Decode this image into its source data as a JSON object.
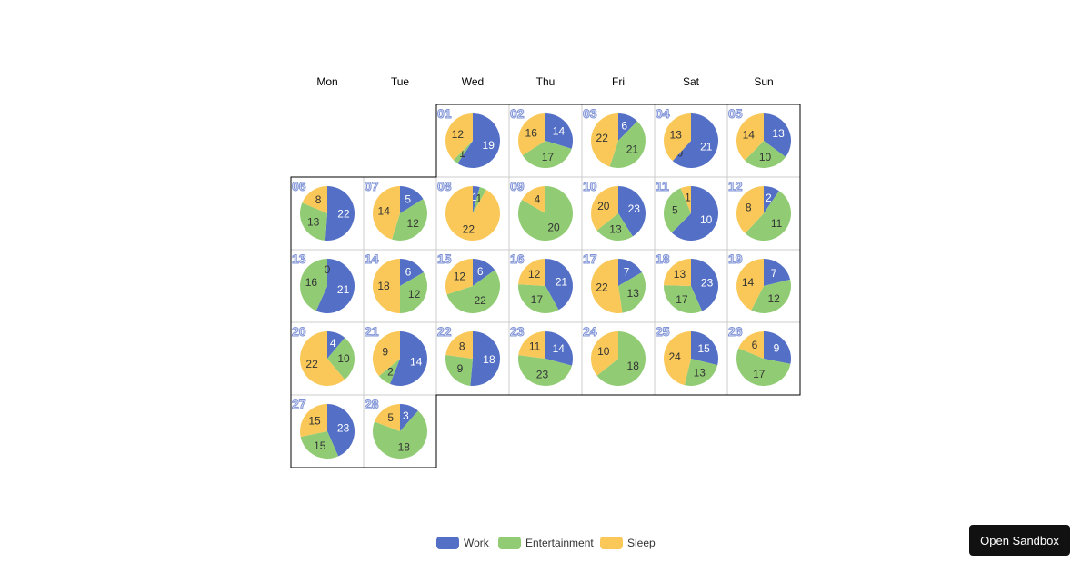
{
  "chart_data": {
    "type": "calendar-pie",
    "weekdays": [
      "Mon",
      "Tue",
      "Wed",
      "Thu",
      "Fri",
      "Sat",
      "Sun"
    ],
    "first_weekday_index": 2,
    "series_names": [
      "Work",
      "Entertainment",
      "Sleep"
    ],
    "colors": [
      "#5470c6",
      "#91cc75",
      "#fac858"
    ],
    "legend_position": "bottom",
    "days": [
      {
        "day": "01",
        "values": [
          19,
          1,
          12
        ]
      },
      {
        "day": "02",
        "values": [
          14,
          17,
          16
        ]
      },
      {
        "day": "03",
        "values": [
          6,
          21,
          22
        ]
      },
      {
        "day": "04",
        "values": [
          21,
          0,
          13
        ]
      },
      {
        "day": "05",
        "values": [
          13,
          10,
          14
        ]
      },
      {
        "day": "06",
        "values": [
          22,
          13,
          8
        ]
      },
      {
        "day": "07",
        "values": [
          5,
          12,
          14
        ]
      },
      {
        "day": "08",
        "values": [
          1,
          1,
          22
        ]
      },
      {
        "day": "09",
        "values": [
          0,
          20,
          4
        ]
      },
      {
        "day": "10",
        "values": [
          23,
          13,
          20
        ]
      },
      {
        "day": "11",
        "values": [
          10,
          5,
          1
        ]
      },
      {
        "day": "12",
        "values": [
          2,
          11,
          8
        ]
      },
      {
        "day": "13",
        "values": [
          21,
          16,
          0
        ]
      },
      {
        "day": "14",
        "values": [
          6,
          12,
          18
        ]
      },
      {
        "day": "15",
        "values": [
          6,
          22,
          12
        ]
      },
      {
        "day": "16",
        "values": [
          21,
          17,
          12
        ]
      },
      {
        "day": "17",
        "values": [
          7,
          13,
          22
        ]
      },
      {
        "day": "18",
        "values": [
          23,
          17,
          13
        ]
      },
      {
        "day": "19",
        "values": [
          7,
          12,
          14
        ]
      },
      {
        "day": "20",
        "values": [
          4,
          10,
          22
        ]
      },
      {
        "day": "21",
        "values": [
          14,
          2,
          9
        ]
      },
      {
        "day": "22",
        "values": [
          18,
          9,
          8
        ]
      },
      {
        "day": "23",
        "values": [
          14,
          23,
          11
        ]
      },
      {
        "day": "24",
        "values": [
          0,
          18,
          10
        ]
      },
      {
        "day": "25",
        "values": [
          15,
          13,
          24
        ]
      },
      {
        "day": "26",
        "values": [
          9,
          17,
          6
        ]
      },
      {
        "day": "27",
        "values": [
          23,
          15,
          15
        ]
      },
      {
        "day": "28",
        "values": [
          3,
          18,
          5
        ]
      }
    ]
  },
  "legend": [
    {
      "label": "Work"
    },
    {
      "label": "Entertainment"
    },
    {
      "label": "Sleep"
    }
  ],
  "sandbox_button": "Open Sandbox"
}
